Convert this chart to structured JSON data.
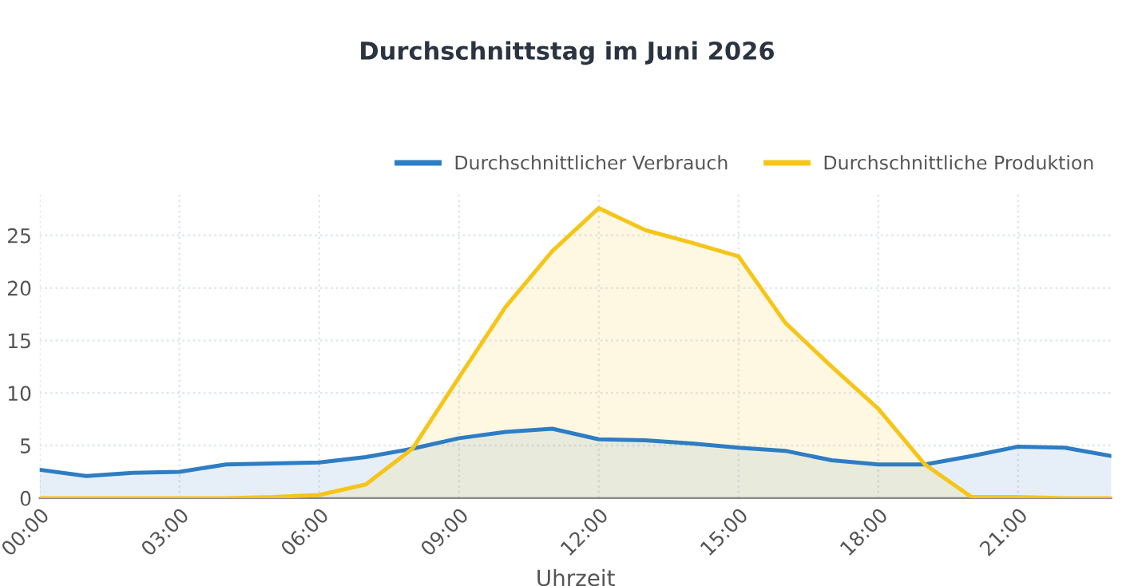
{
  "chart_data": {
    "type": "area",
    "title": "Durchschnittstag im Juni 2026",
    "xlabel": "Uhrzeit",
    "x": [
      0,
      1,
      2,
      3,
      4,
      5,
      6,
      7,
      8,
      9,
      10,
      11,
      12,
      13,
      14,
      15,
      16,
      17,
      18,
      19,
      20,
      21,
      22,
      23
    ],
    "series": [
      {
        "name": "Durchschnittlicher Verbrauch",
        "color": "#2e7dc4",
        "values": [
          2.7,
          2.1,
          2.4,
          2.5,
          3.2,
          3.3,
          3.4,
          3.9,
          4.7,
          5.7,
          6.3,
          6.6,
          5.6,
          5.5,
          5.2,
          4.8,
          4.5,
          3.6,
          3.2,
          3.2,
          4.0,
          4.9,
          4.8,
          4.0
        ]
      },
      {
        "name": "Durchschnittliche Produktion",
        "color": "#f5c518",
        "values": [
          0,
          0,
          0,
          0,
          0,
          0.1,
          0.3,
          1.3,
          4.7,
          11.5,
          18.2,
          23.5,
          27.6,
          25.5,
          24.3,
          23.0,
          16.7,
          12.5,
          8.5,
          3.2,
          0.1,
          0.1,
          0,
          0
        ]
      }
    ],
    "xlim": [
      0,
      23
    ],
    "xticks": [
      {
        "value": 0,
        "label": "00:00"
      },
      {
        "value": 3,
        "label": "03:00"
      },
      {
        "value": 6,
        "label": "06:00"
      },
      {
        "value": 9,
        "label": "09:00"
      },
      {
        "value": 12,
        "label": "12:00"
      },
      {
        "value": 15,
        "label": "15:00"
      },
      {
        "value": 18,
        "label": "18:00"
      },
      {
        "value": 21,
        "label": "21:00"
      }
    ],
    "ylim": [
      0,
      29
    ],
    "yticks": [
      0,
      5,
      10,
      15,
      20,
      25
    ],
    "grid": true,
    "legend": "top right",
    "marker": "none",
    "line_style": "solid"
  }
}
